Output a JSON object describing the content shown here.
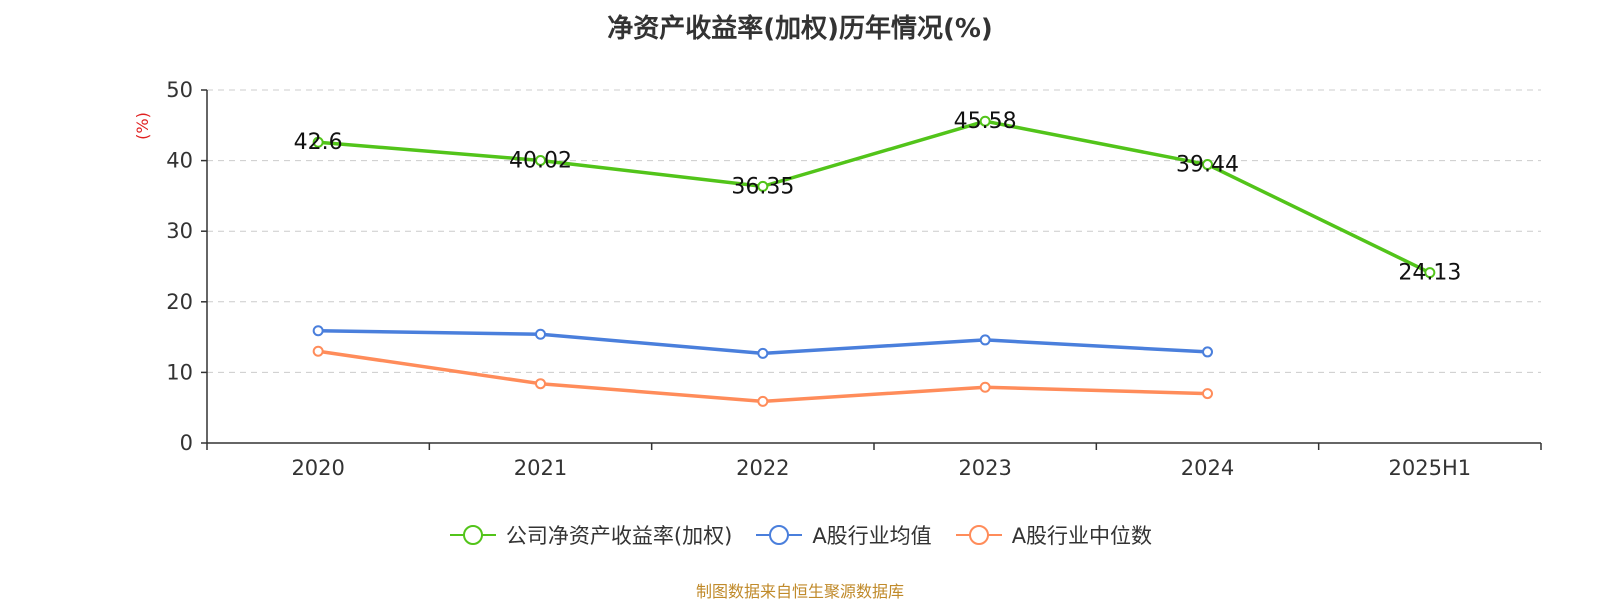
{
  "source_note": "制图数据来自恒生聚源数据库",
  "chart_data": {
    "type": "line",
    "title": "净资产收益率(加权)历年情况(%)",
    "ylabel": "(%)",
    "ylim": [
      0,
      50
    ],
    "yticks": [
      0,
      10,
      20,
      30,
      40,
      50
    ],
    "grid": true,
    "legend_position": "bottom",
    "categories": [
      "2020",
      "2021",
      "2022",
      "2023",
      "2024",
      "2025H1"
    ],
    "series": [
      {
        "name": "公司净资产收益率(加权)",
        "color": "#52c41a",
        "values": [
          42.6,
          40.02,
          36.35,
          45.58,
          39.44,
          24.13
        ],
        "value_labels": [
          "42.6",
          "40.02",
          "36.35",
          "45.58",
          "39.44",
          "24.13"
        ]
      },
      {
        "name": "A股行业均值",
        "color": "#4a7fdc",
        "values": [
          15.9,
          15.4,
          12.7,
          14.6,
          12.9,
          null
        ]
      },
      {
        "name": "A股行业中位数",
        "color": "#ff8c5a",
        "values": [
          13.0,
          8.4,
          5.9,
          7.9,
          7.0,
          null
        ]
      }
    ]
  }
}
